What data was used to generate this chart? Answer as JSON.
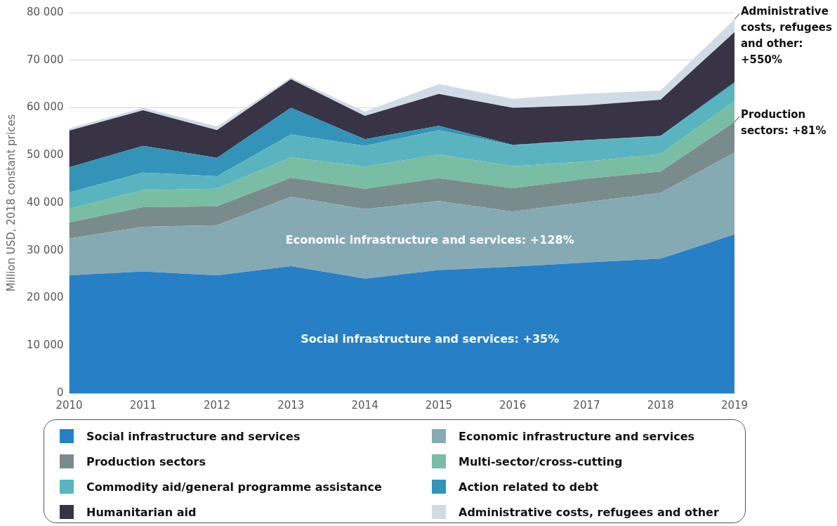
{
  "chart_data": {
    "type": "area",
    "stacked": true,
    "ylabel": "Million USD, 2018 constant prices",
    "categories": [
      "2010",
      "2011",
      "2012",
      "2013",
      "2014",
      "2015",
      "2016",
      "2017",
      "2018",
      "2019"
    ],
    "ylim": [
      0,
      80000
    ],
    "yticks": [
      {
        "value": 0,
        "label": "0"
      },
      {
        "value": 10000,
        "label": "10 000"
      },
      {
        "value": 20000,
        "label": "20 000"
      },
      {
        "value": 30000,
        "label": "30 000"
      },
      {
        "value": 40000,
        "label": "40 000"
      },
      {
        "value": 50000,
        "label": "50 000"
      },
      {
        "value": 60000,
        "label": "60 000"
      },
      {
        "value": 70000,
        "label": "70 000"
      },
      {
        "value": 80000,
        "label": "80 000"
      }
    ],
    "grid": "y",
    "legend": "bottom",
    "series": [
      {
        "name": "Social infrastructure and services",
        "color": "#2780c6",
        "values": [
          24800,
          25600,
          24800,
          26700,
          24100,
          25900,
          26600,
          27500,
          28300,
          33400
        ]
      },
      {
        "name": "Economic infrastructure and services",
        "color": "#86aab3",
        "values": [
          7700,
          9400,
          10500,
          14600,
          14600,
          14500,
          11600,
          12700,
          13800,
          17200
        ]
      },
      {
        "name": "Production sectors",
        "color": "#7a8b8c",
        "values": [
          3400,
          4100,
          4000,
          4000,
          4300,
          4800,
          4900,
          4900,
          4500,
          6400
        ]
      },
      {
        "name": "Multi-sector/cross-cutting",
        "color": "#79bda5",
        "values": [
          2900,
          3600,
          3700,
          4300,
          4600,
          5000,
          4600,
          3600,
          3700,
          4400
        ]
      },
      {
        "name": "Commodity aid/general programme assistance",
        "color": "#59b4c0",
        "values": [
          3400,
          3700,
          2600,
          4800,
          4400,
          5100,
          4400,
          4500,
          3700,
          3700
        ]
      },
      {
        "name": "Action related to debt",
        "color": "#3493b8",
        "values": [
          5300,
          5600,
          3900,
          5600,
          1400,
          900,
          100,
          0,
          100,
          300
        ]
      },
      {
        "name": "Humanitarian aid",
        "color": "#383446",
        "values": [
          7700,
          7500,
          5800,
          6000,
          4900,
          6700,
          7800,
          7300,
          7600,
          10500
        ]
      },
      {
        "name": "Administrative costs, refugees and other",
        "color": "#cfdbe5",
        "values": [
          500,
          500,
          800,
          400,
          900,
          2100,
          1900,
          2500,
          1900,
          2700
        ]
      }
    ],
    "annotations": [
      "Economic infrastructure and services: +128%",
      "Social infrastructure and services: +35%",
      {
        "text": "Administrative costs, refugees and other: +550%",
        "x": "2019",
        "y": 78600
      },
      {
        "text": "Production sectors: +81%",
        "x": "2019",
        "y": 57000
      }
    ]
  }
}
